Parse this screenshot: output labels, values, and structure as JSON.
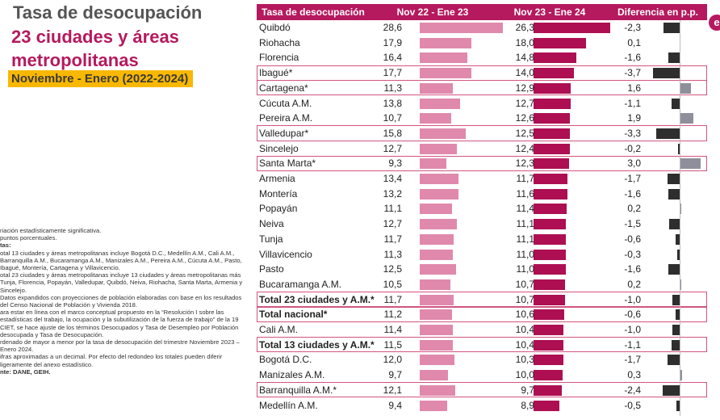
{
  "title": "Tasa de desocupación",
  "subtitle": "23 ciudades y áreas metropolitanas",
  "period": "Noviembre - Enero (2022-2024)",
  "notes": [
    {
      "text": "riación estadísticamente significativa.",
      "bold": false
    },
    {
      "text": " puntos porcentuales.",
      "bold": false
    },
    {
      "text": "tas:",
      "bold": true
    },
    {
      "text": "otal 13 ciudades y áreas metropolitanas incluye Bogotá D.C., Medellín A.M., Cali A.M., Barranquilla A.M., Bucaramanga A.M., Manizales A.M., Pereira A.M., Cúcuta A.M., Pasto, Ibagué, Montería, Cartagena y Villavicencio.",
      "bold": false
    },
    {
      "text": "otal 23 ciudades y áreas metropolitanas incluye 13 ciudades y áreas metropolitanas más Tunja, Florencia, Popayán, Valledupar, Quibdó, Neiva, Riohacha, Santa Marta, Armenia y Sincelejo.",
      "bold": false
    },
    {
      "text": "Datos expandidos con proyecciones de población elaboradas con base en los resultados del Censo Nacional de Población y Vivienda 2018.",
      "bold": false
    },
    {
      "text": "ara estar en línea con el marco conceptual propuesto en la “Resolución I sobre las estadísticas del trabajo, la ocupación y la subutilización de la fuerza de trabajo” de la 19 CIET, se hace ajuste de los términos Desocupados y Tasa de Desempleo por Población desocupada y Tasa de Desocupación.",
      "bold": false
    },
    {
      "text": "rdenado de mayor a menor por la tasa de desocupación del trimestre Noviembre 2023 – Enero 2024.",
      "bold": false
    },
    {
      "text": "ifras aproximadas a un decimal. Por efecto del redondeo los totales pueden diferir ligeramente del anexo estadístico.",
      "bold": false
    },
    {
      "text": "nte: DANE, GEIH.",
      "bold": true
    }
  ],
  "colors": {
    "brand": "#b5195e",
    "bar_prev": "#e089ad",
    "bar_curr": "#ad0f52",
    "diff_negative": "#2e2e2e",
    "diff_positive": "#8f8f9c",
    "period_bg": "#f9b800"
  },
  "corner_icon": "circled-letter-icon",
  "chart_data": {
    "type": "bar",
    "columns": [
      "Tasa de desocupación",
      "Nov 22 - Ene 23",
      "Nov 23 - Ene 24",
      "Diferencia en p.p."
    ],
    "series": [
      {
        "name": "Nov 22 - Ene 23",
        "key": "prev"
      },
      {
        "name": "Nov 23 - Ene 24",
        "key": "curr"
      },
      {
        "name": "Diferencia en p.p.",
        "key": "diff"
      }
    ],
    "rows": [
      {
        "name": "Quibdó",
        "prev": 28.6,
        "curr": 26.3,
        "diff": -2.3,
        "bold": false,
        "highlight": false
      },
      {
        "name": "Riohacha",
        "prev": 17.9,
        "curr": 18.0,
        "diff": 0.1,
        "bold": false,
        "highlight": false
      },
      {
        "name": "Florencia",
        "prev": 16.4,
        "curr": 14.8,
        "diff": -1.6,
        "bold": false,
        "highlight": false
      },
      {
        "name": "Ibagué*",
        "prev": 17.7,
        "curr": 14.0,
        "diff": -3.7,
        "bold": false,
        "highlight": true
      },
      {
        "name": "Cartagena*",
        "prev": 11.3,
        "curr": 12.9,
        "diff": 1.6,
        "bold": false,
        "highlight": true
      },
      {
        "name": "Cúcuta A.M.",
        "prev": 13.8,
        "curr": 12.7,
        "diff": -1.1,
        "bold": false,
        "highlight": false
      },
      {
        "name": "Pereira A.M.",
        "prev": 10.7,
        "curr": 12.6,
        "diff": 1.9,
        "bold": false,
        "highlight": false
      },
      {
        "name": "Valledupar*",
        "prev": 15.8,
        "curr": 12.5,
        "diff": -3.3,
        "bold": false,
        "highlight": true
      },
      {
        "name": "Sincelejo",
        "prev": 12.7,
        "curr": 12.4,
        "diff": -0.2,
        "bold": false,
        "highlight": false
      },
      {
        "name": "Santa Marta*",
        "prev": 9.3,
        "curr": 12.3,
        "diff": 3.0,
        "bold": false,
        "highlight": true
      },
      {
        "name": "Armenia",
        "prev": 13.4,
        "curr": 11.7,
        "diff": -1.7,
        "bold": false,
        "highlight": false
      },
      {
        "name": "Montería",
        "prev": 13.2,
        "curr": 11.6,
        "diff": -1.6,
        "bold": false,
        "highlight": false
      },
      {
        "name": "Popayán",
        "prev": 11.1,
        "curr": 11.4,
        "diff": 0.2,
        "bold": false,
        "highlight": false
      },
      {
        "name": "Neiva",
        "prev": 12.7,
        "curr": 11.1,
        "diff": -1.5,
        "bold": false,
        "highlight": false
      },
      {
        "name": "Tunja",
        "prev": 11.7,
        "curr": 11.1,
        "diff": -0.6,
        "bold": false,
        "highlight": false
      },
      {
        "name": "Villavicencio",
        "prev": 11.3,
        "curr": 11.0,
        "diff": -0.3,
        "bold": false,
        "highlight": false
      },
      {
        "name": "Pasto",
        "prev": 12.5,
        "curr": 11.0,
        "diff": -1.6,
        "bold": false,
        "highlight": false
      },
      {
        "name": "Bucaramanga A.M.",
        "prev": 10.5,
        "curr": 10.7,
        "diff": 0.2,
        "bold": false,
        "highlight": false
      },
      {
        "name": "Total 23 ciudades y A.M.*",
        "prev": 11.7,
        "curr": 10.7,
        "diff": -1.0,
        "bold": true,
        "highlight": true
      },
      {
        "name": "Total nacional*",
        "prev": 11.2,
        "curr": 10.6,
        "diff": -0.6,
        "bold": true,
        "highlight": true
      },
      {
        "name": "Cali A.M.",
        "prev": 11.4,
        "curr": 10.4,
        "diff": -1.0,
        "bold": false,
        "highlight": false
      },
      {
        "name": "Total 13 ciudades y A.M.*",
        "prev": 11.5,
        "curr": 10.4,
        "diff": -1.1,
        "bold": true,
        "highlight": true
      },
      {
        "name": "Bogotá D.C.",
        "prev": 12.0,
        "curr": 10.3,
        "diff": -1.7,
        "bold": false,
        "highlight": false
      },
      {
        "name": "Manizales A.M.",
        "prev": 9.7,
        "curr": 10.0,
        "diff": 0.3,
        "bold": false,
        "highlight": false
      },
      {
        "name": "Barranquilla A.M.*",
        "prev": 12.1,
        "curr": 9.7,
        "diff": -2.4,
        "bold": false,
        "highlight": true
      },
      {
        "name": "Medellín A.M.",
        "prev": 9.4,
        "curr": 8.9,
        "diff": -0.5,
        "bold": false,
        "highlight": false
      }
    ]
  }
}
